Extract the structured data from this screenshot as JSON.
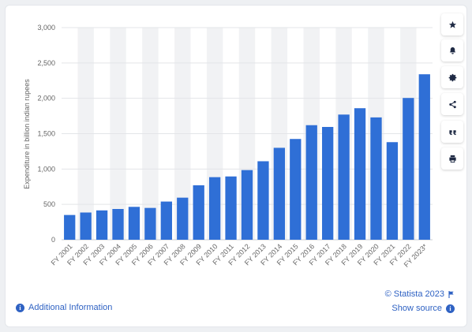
{
  "chart_data": {
    "type": "bar",
    "categories": [
      "FY 2001",
      "FY 2002",
      "FY 2003",
      "FY 2004",
      "FY 2005",
      "FY 2006",
      "FY 2007",
      "FY 2008",
      "FY 2009",
      "FY 2010",
      "FY 2011",
      "FY 2012",
      "FY 2013",
      "FY 2014",
      "FY 2015",
      "FY 2016",
      "FY 2017",
      "FY 2018",
      "FY 2019",
      "FY 2020",
      "FY 2021",
      "FY 2022",
      "FY 2023*"
    ],
    "values": [
      350,
      385,
      415,
      435,
      465,
      450,
      540,
      595,
      770,
      885,
      895,
      985,
      1110,
      1300,
      1425,
      1620,
      1595,
      1770,
      1860,
      1730,
      1380,
      2005,
      2340
    ],
    "ylabel": "Expenditure in billion indian rupees",
    "xlabel": "",
    "ylim": [
      0,
      3000
    ],
    "yticks": [
      0,
      500,
      1000,
      1500,
      2000,
      2500,
      3000
    ],
    "ytick_labels": [
      "0",
      "500",
      "1,000",
      "1,500",
      "2,000",
      "2,500",
      "3,000"
    ],
    "bar_color": "#2f6fd6",
    "band_color": "#f1f2f4",
    "grid": true,
    "legend": "none"
  },
  "sidebar": {
    "buttons": [
      {
        "name": "star-button",
        "icon": "star-icon"
      },
      {
        "name": "notification-button",
        "icon": "bell-icon"
      },
      {
        "name": "settings-button",
        "icon": "gear-icon"
      },
      {
        "name": "share-button",
        "icon": "share-icon"
      },
      {
        "name": "cite-button",
        "icon": "quote-icon"
      },
      {
        "name": "print-button",
        "icon": "print-icon"
      }
    ]
  },
  "footer": {
    "additional_info": "Additional Information",
    "credit": "© Statista 2023",
    "show_source": "Show source"
  },
  "colors": {
    "accent": "#2f62c3",
    "icon": "#1f2a44"
  }
}
